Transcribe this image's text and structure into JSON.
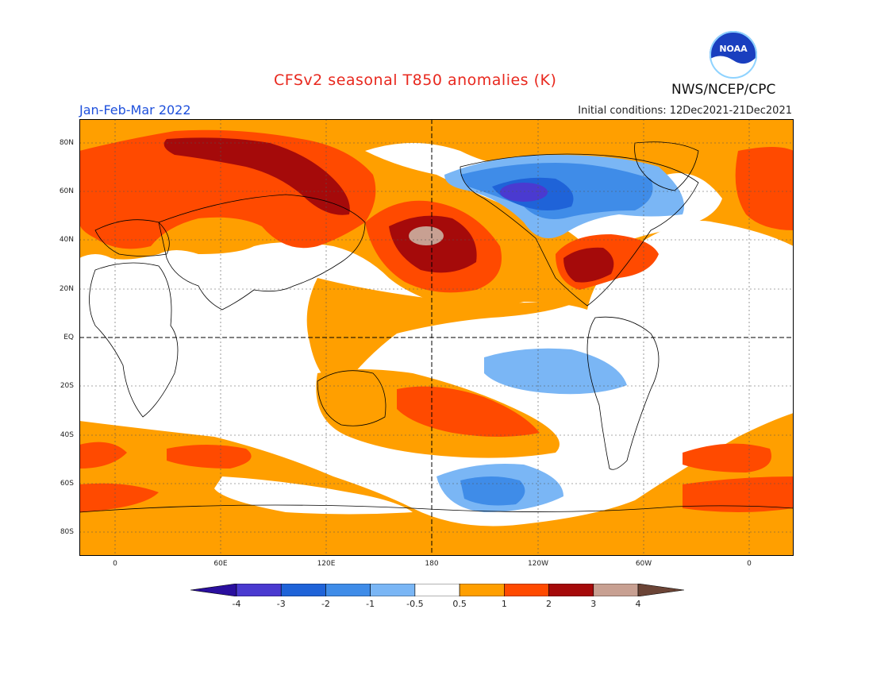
{
  "header": {
    "title": "CFSv2 seasonal T850 anomalies (K)",
    "season": "Jan-Feb-Mar 2022",
    "initial_conditions": "Initial conditions: 12Dec2021-21Dec2021",
    "agency": "NWS/NCEP/CPC",
    "logo_text": "NOAA"
  },
  "axes": {
    "lat_labels": [
      "80N",
      "60N",
      "40N",
      "20N",
      "EQ",
      "20S",
      "40S",
      "60S",
      "80S"
    ],
    "lon_labels": [
      "0",
      "60E",
      "120E",
      "180",
      "120W",
      "60W",
      "0"
    ]
  },
  "colorbar": {
    "labels": [
      "-4",
      "-3",
      "-2",
      "-1",
      "-0.5",
      "0.5",
      "1",
      "2",
      "3",
      "4"
    ],
    "colors": [
      "#2a0f9e",
      "#4a3ad0",
      "#1f63d8",
      "#3f8ce8",
      "#7ab6f5",
      "#ffffff",
      "#ff9f00",
      "#ff4a00",
      "#a50a0a",
      "#c8a092",
      "#6b4436"
    ]
  },
  "colors": {
    "title": "#e8281e",
    "season": "#1e50dc",
    "ocean_border": "#000000"
  }
}
